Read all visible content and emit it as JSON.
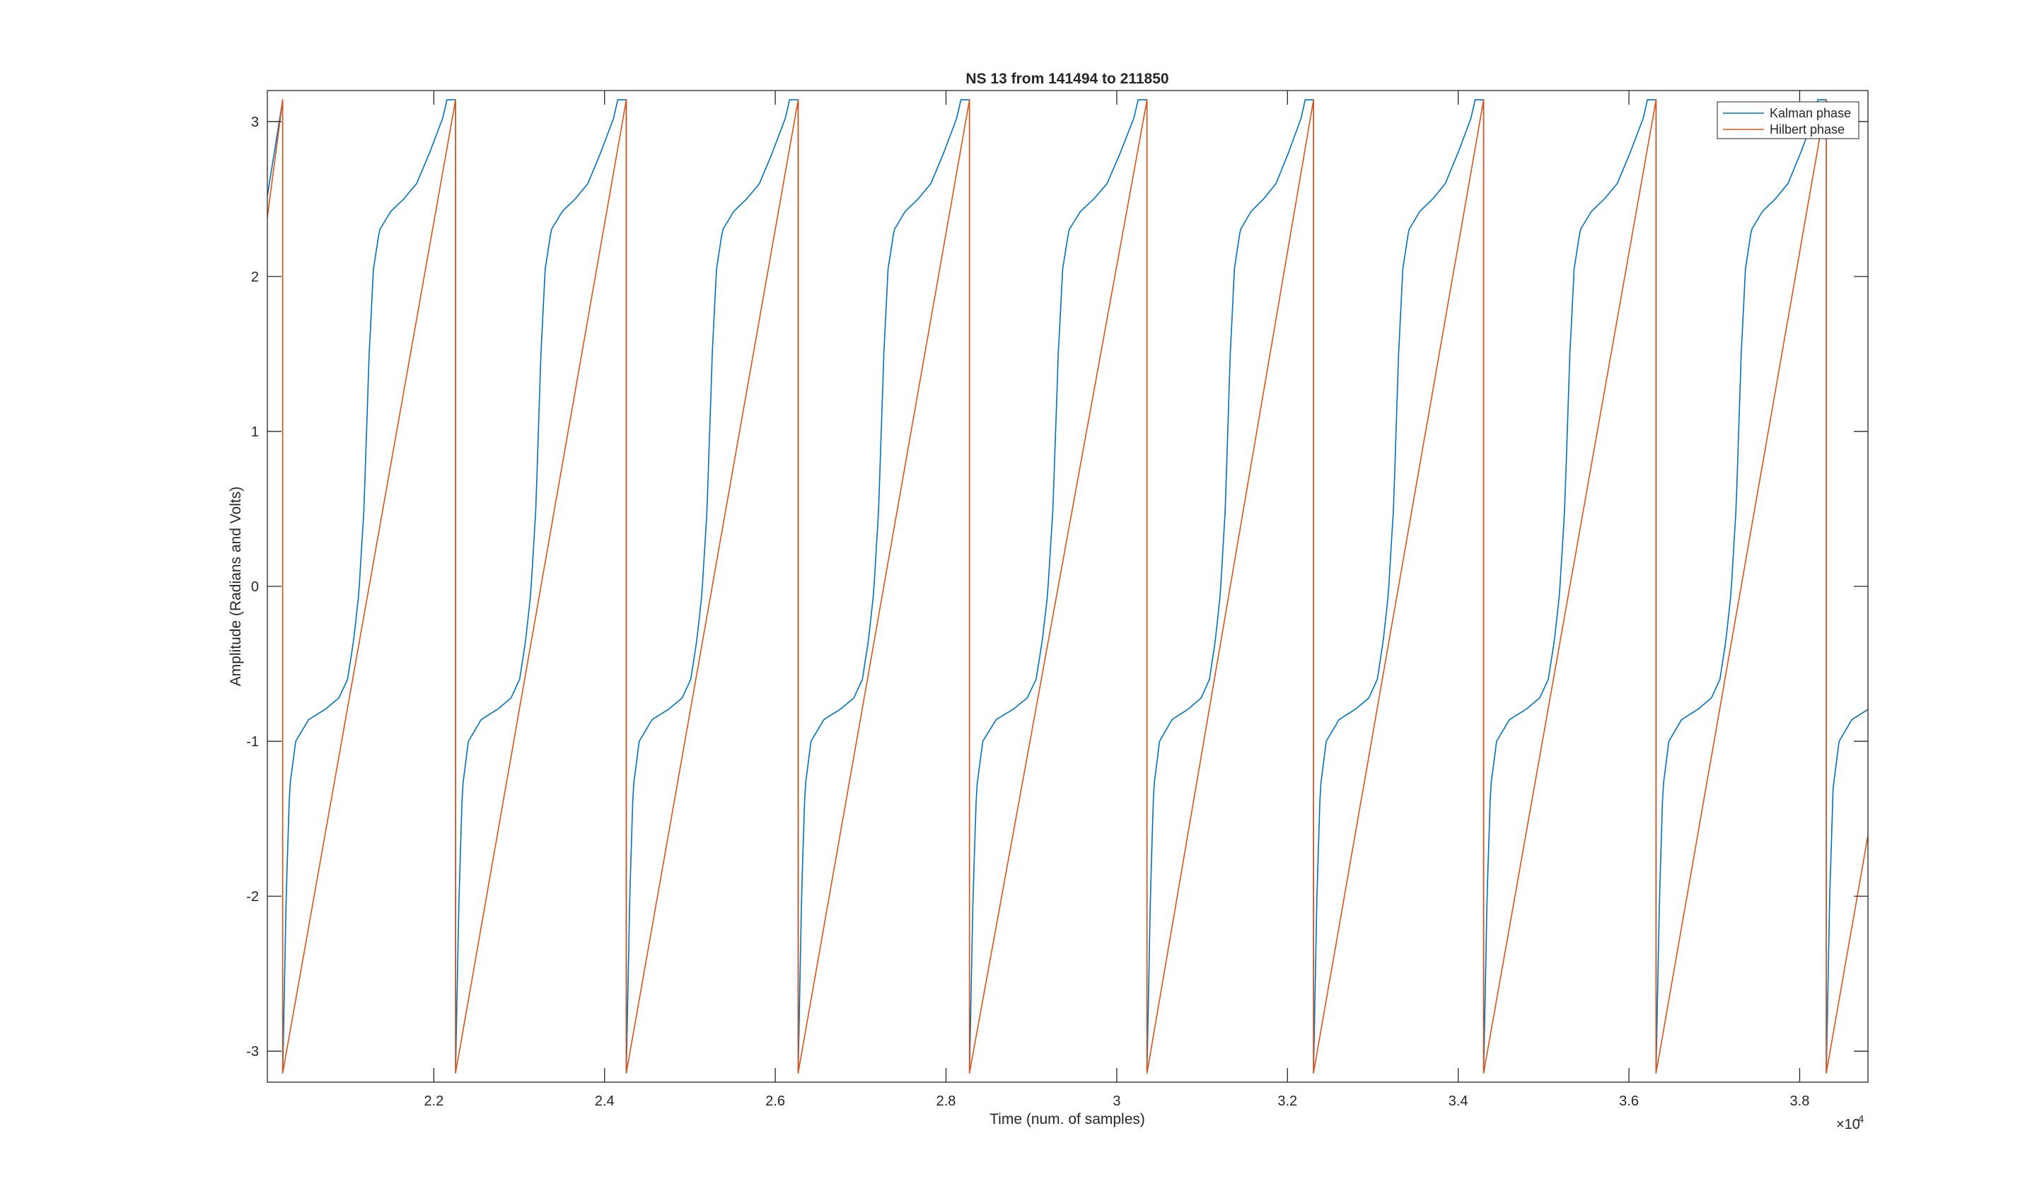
{
  "chart_data": {
    "type": "line",
    "title": "NS 13 from 141494 to 211850",
    "xlabel": "Time (num. of samples)",
    "ylabel": "Amplitude (Radians and Volts)",
    "x_exponent_label": "×10",
    "x_exponent_power": "4",
    "xlim": [
      2.005,
      3.88
    ],
    "ylim": [
      -3.2,
      3.2
    ],
    "xticks": [
      2.2,
      2.4,
      2.6,
      2.8,
      3.0,
      3.2,
      3.4,
      3.6,
      3.8
    ],
    "xtick_labels": [
      "2.2",
      "2.4",
      "2.6",
      "2.8",
      "3",
      "3.2",
      "3.4",
      "3.6",
      "3.8"
    ],
    "yticks": [
      -3,
      -2,
      -1,
      0,
      1,
      2,
      3
    ],
    "ytick_labels": [
      "-3",
      "-2",
      "-1",
      "0",
      "1",
      "2",
      "3"
    ],
    "grid": false,
    "legend_position": "top-right",
    "cycle_starts": [
      2.023,
      2.2255,
      2.4255,
      2.6268,
      2.8275,
      3.0355,
      3.2305,
      3.4298,
      3.6318,
      3.8312
    ],
    "cycle_period": 0.2,
    "series": [
      {
        "name": "Kalman phase",
        "color": "#0072BD",
        "profile": [
          [
            0.0,
            -3.14
          ],
          [
            0.004,
            -2.0
          ],
          [
            0.008,
            -1.3
          ],
          [
            0.015,
            -1.0
          ],
          [
            0.03,
            -0.86
          ],
          [
            0.05,
            -0.79
          ],
          [
            0.065,
            -0.72
          ],
          [
            0.075,
            -0.6
          ],
          [
            0.082,
            -0.35
          ],
          [
            0.088,
            -0.05
          ],
          [
            0.094,
            0.5
          ],
          [
            0.1,
            1.5
          ],
          [
            0.105,
            2.05
          ],
          [
            0.112,
            2.3
          ],
          [
            0.125,
            2.42
          ],
          [
            0.14,
            2.5
          ],
          [
            0.155,
            2.6
          ],
          [
            0.17,
            2.8
          ],
          [
            0.185,
            3.02
          ],
          [
            0.19,
            3.14
          ]
        ],
        "start_value": 2.52,
        "tail_value": -0.79
      },
      {
        "name": "Hilbert phase",
        "color": "#D95319",
        "profile": [
          [
            0.0,
            -3.14
          ],
          [
            0.2,
            3.14
          ]
        ],
        "start_value": 2.38,
        "tail_value": -1.68
      }
    ]
  }
}
